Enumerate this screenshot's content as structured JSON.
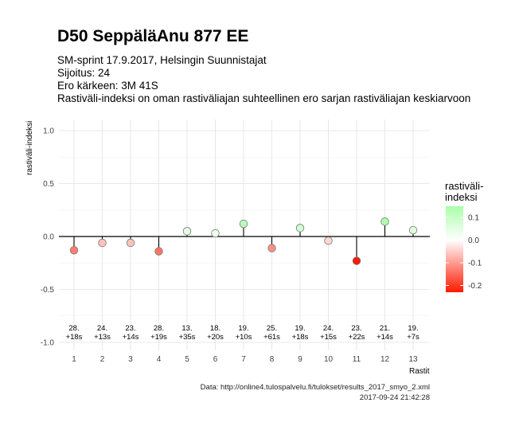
{
  "title": "D50 SeppäläAnu 877 EE",
  "subtitle": {
    "line1": "SM-sprint 17.9.2017, Helsingin Suunnistajat",
    "line2": "Sijoitus: 24",
    "line3": "Ero kärkeen: 3M 41S",
    "line4": "Rastiväli-indeksi on oman rastiväliajan suhteellinen ero sarjan rastiväliajan keskiarvoon"
  },
  "caption": {
    "source": "Data: http://online4.tulospalvelu.fi/tulokset/results_2017_smyo_2.xml",
    "timestamp": "2017-09-24 21:42:28"
  },
  "legend": {
    "title_line1": "rastiväli-",
    "title_line2": "indeksi",
    "ticks": [
      0.1,
      0.0,
      -0.1,
      -0.2
    ],
    "tick_labels": [
      "0.1",
      "0.0",
      "-0.1",
      "-0.2"
    ],
    "range": [
      -0.23,
      0.15
    ],
    "colors": {
      "high": "#aaffaa",
      "mid": "#ffffff",
      "low": "#ff1a00"
    }
  },
  "chart_data": {
    "type": "scatter",
    "xlabel": "Rastit",
    "ylabel": "rastiväli-indeksi",
    "ylim": [
      -1.0,
      1.0
    ],
    "y_ticks": [
      1.0,
      0.5,
      0.0,
      -0.5,
      -1.0
    ],
    "y_tick_labels": [
      "1.0",
      "0.5",
      "0.0",
      "-0.5",
      "-1.0"
    ],
    "x": [
      1,
      2,
      3,
      4,
      5,
      6,
      7,
      8,
      9,
      10,
      11,
      12,
      13
    ],
    "x_tick_labels": [
      "1",
      "2",
      "3",
      "4",
      "5",
      "6",
      "7",
      "8",
      "9",
      "10",
      "11",
      "12",
      "13"
    ],
    "values": [
      -0.13,
      -0.06,
      -0.06,
      -0.14,
      0.05,
      0.03,
      0.12,
      -0.11,
      0.08,
      -0.04,
      -0.23,
      0.14,
      0.06
    ],
    "rank_labels": [
      "28.",
      "24.",
      "23.",
      "28.",
      "13.",
      "18.",
      "19.",
      "25.",
      "19.",
      "24.",
      "23.",
      "21.",
      "19."
    ],
    "diff_labels": [
      "+18s",
      "+13s",
      "+14s",
      "+19s",
      "+35s",
      "+20s",
      "+10s",
      "+61s",
      "+18s",
      "+15s",
      "+22s",
      "+14s",
      "+7s"
    ],
    "grid": true,
    "legend_position": "right"
  }
}
